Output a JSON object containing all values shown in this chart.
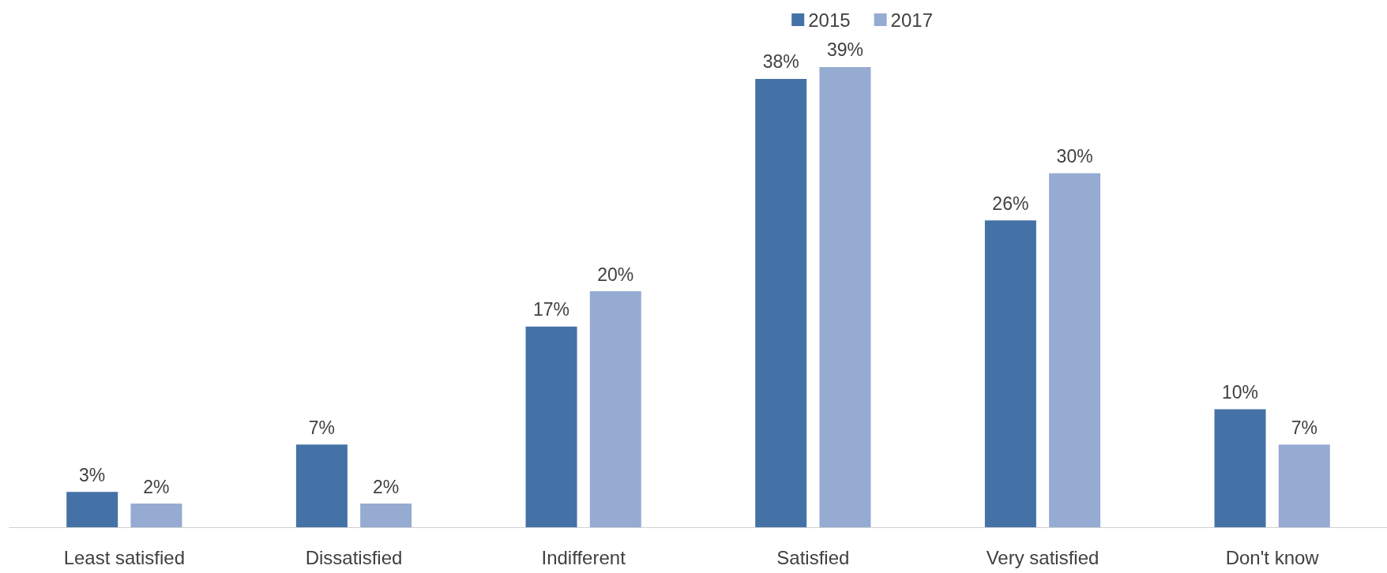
{
  "chart_data": {
    "type": "bar",
    "categories": [
      "Least satisfied",
      "Dissatisfied",
      "Indifferent",
      "Satisfied",
      "Very satisfied",
      "Don't know"
    ],
    "series": [
      {
        "name": "2015",
        "color": "#4472a6",
        "values": [
          3,
          7,
          17,
          38,
          26,
          10
        ],
        "value_labels": [
          "3%",
          "7%",
          "17%",
          "38%",
          "26%",
          "10%"
        ]
      },
      {
        "name": "2017",
        "color": "#95abd2",
        "values": [
          2,
          2,
          20,
          39,
          30,
          7
        ],
        "value_labels": [
          "2%",
          "2%",
          "20%",
          "39%",
          "30%",
          "7%"
        ]
      }
    ],
    "legend": "top right"
  }
}
